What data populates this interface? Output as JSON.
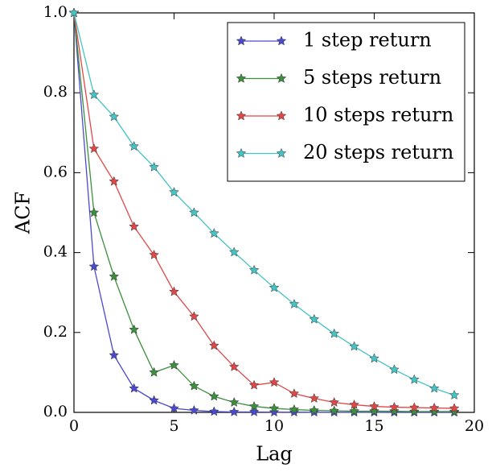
{
  "chart_data": {
    "type": "line",
    "x_label": "Lag",
    "y_label": "ACF",
    "x": [
      0,
      1,
      2,
      3,
      4,
      5,
      6,
      7,
      8,
      9,
      10,
      11,
      12,
      13,
      14,
      15,
      16,
      17,
      18,
      19
    ],
    "series": [
      {
        "name": "1 step return",
        "color": "#4a4ad0",
        "values": [
          1.0,
          0.365,
          0.143,
          0.06,
          0.03,
          0.01,
          0.005,
          0.002,
          0.001,
          0.001,
          0.0005,
          0.0005,
          0.0003,
          0.0003,
          0.0002,
          0.0002,
          0.0001,
          0.0001,
          0.0001,
          0.0001
        ]
      },
      {
        "name": "5 steps return",
        "color": "#3c8f3c",
        "values": [
          1.0,
          0.5,
          0.34,
          0.207,
          0.1,
          0.118,
          0.066,
          0.04,
          0.025,
          0.015,
          0.01,
          0.007,
          0.005,
          0.004,
          0.003,
          0.003,
          0.003,
          0.002,
          0.002,
          0.002
        ]
      },
      {
        "name": "10 steps return",
        "color": "#e04848",
        "values": [
          1.0,
          0.66,
          0.578,
          0.465,
          0.394,
          0.302,
          0.24,
          0.167,
          0.114,
          0.068,
          0.075,
          0.047,
          0.035,
          0.025,
          0.019,
          0.015,
          0.013,
          0.012,
          0.011,
          0.01
        ]
      },
      {
        "name": "20 steps return",
        "color": "#44c4c4",
        "values": [
          1.0,
          0.795,
          0.74,
          0.666,
          0.614,
          0.551,
          0.5,
          0.448,
          0.401,
          0.356,
          0.312,
          0.271,
          0.233,
          0.197,
          0.165,
          0.135,
          0.107,
          0.082,
          0.06,
          0.043
        ]
      }
    ],
    "xlim": [
      0,
      20
    ],
    "xticks": [
      0,
      5,
      10,
      15,
      20
    ],
    "ylim": [
      0,
      1
    ],
    "yticks": [
      {
        "value": 0,
        "label": "0.0"
      },
      0.2,
      0.4,
      0.6,
      0.8,
      {
        "value": 1,
        "label": "1.0"
      }
    ],
    "legend": "upper right"
  }
}
